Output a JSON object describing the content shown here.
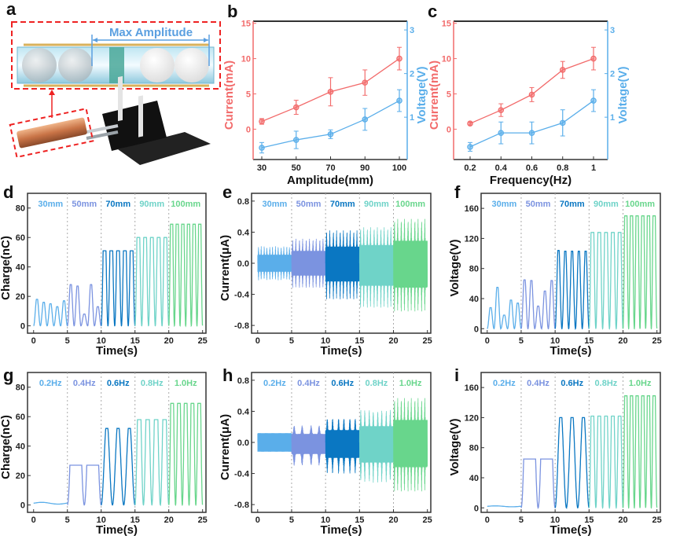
{
  "panel_letters": [
    "a",
    "b",
    "c",
    "d",
    "e",
    "f",
    "g",
    "h",
    "i"
  ],
  "illustration": {
    "label": "Max Amplitude",
    "accent_color": "#5a9fe0",
    "highlight_color": "#ee2222"
  },
  "colors": {
    "current": "#f26b6b",
    "voltage": "#5aaeea",
    "divider": "#aaaaaa",
    "frame": "#333333"
  },
  "chart_data": [
    {
      "panel": "b",
      "type": "line",
      "xlabel": "Amplitude(mm)",
      "ylabel_left": "Current(mA)",
      "ylabel_right": "Voltage(V)",
      "categories": [
        "30",
        "50",
        "70",
        "90",
        "100"
      ],
      "ylim_left": [
        -4.3,
        15.3
      ],
      "yticks_left": [
        "0",
        "5",
        "10",
        "15"
      ],
      "ylim_right": [
        0.03,
        3.2
      ],
      "yticks_right": [
        "1",
        "2",
        "3"
      ],
      "series": [
        {
          "axis": "left",
          "color": "#f26b6b",
          "values": [
            1.1,
            3.1,
            5.3,
            6.6,
            10.0
          ],
          "errors": [
            0.4,
            1.0,
            2.0,
            1.8,
            1.6
          ]
        },
        {
          "axis": "right",
          "color": "#5aaeea",
          "values": [
            0.3,
            0.48,
            0.61,
            0.95,
            1.38
          ],
          "errors": [
            0.12,
            0.2,
            0.1,
            0.25,
            0.25
          ]
        }
      ]
    },
    {
      "panel": "c",
      "type": "line",
      "xlabel": "Frequency(Hz)",
      "ylabel_left": "Current(mA)",
      "ylabel_right": "Voltage(V)",
      "categories": [
        "0.2",
        "0.4",
        "0.6",
        "0.8",
        "1"
      ],
      "ylim_left": [
        -4.3,
        15.3
      ],
      "yticks_left": [
        "0",
        "5",
        "10",
        "15"
      ],
      "ylim_right": [
        0.03,
        3.2
      ],
      "yticks_right": [
        "1",
        "2",
        "3"
      ],
      "series": [
        {
          "axis": "left",
          "color": "#f26b6b",
          "values": [
            0.8,
            2.7,
            4.9,
            8.4,
            10.0
          ],
          "errors": [
            0.2,
            0.9,
            1.0,
            1.2,
            1.6
          ]
        },
        {
          "axis": "right",
          "color": "#5aaeea",
          "values": [
            0.32,
            0.64,
            0.64,
            0.87,
            1.38
          ],
          "errors": [
            0.1,
            0.25,
            0.25,
            0.3,
            0.25
          ]
        }
      ]
    },
    {
      "panel": "d",
      "type": "line",
      "kind": "charge",
      "xlabel": "Time(s)",
      "ylabel": "Charge(nC)",
      "xlim": [
        0,
        25
      ],
      "xticks": [
        "0",
        "5",
        "10",
        "15",
        "20",
        "25"
      ],
      "ylim": [
        -5,
        90
      ],
      "yticks": [
        "0",
        "20",
        "40",
        "60",
        "80"
      ],
      "segments": [
        {
          "label": "30mm",
          "t": [
            0,
            5
          ],
          "color": "#5aaeea",
          "peaks": [
            18,
            16,
            15,
            13,
            17
          ]
        },
        {
          "label": "50mm",
          "t": [
            5,
            10
          ],
          "color": "#7b93e0",
          "peaks": [
            28,
            27,
            8,
            28,
            13
          ]
        },
        {
          "label": "70mm",
          "t": [
            10,
            15
          ],
          "color": "#0a77c2",
          "peaks": [
            51,
            51,
            51,
            51,
            51
          ]
        },
        {
          "label": "90mm",
          "t": [
            15,
            20
          ],
          "color": "#6fd3c8",
          "peaks": [
            60,
            60,
            60,
            60,
            60
          ]
        },
        {
          "label": "100mm",
          "t": [
            20,
            25
          ],
          "color": "#68d68c",
          "peaks": [
            69,
            69,
            69,
            69,
            69,
            69
          ]
        }
      ]
    },
    {
      "panel": "e",
      "type": "line",
      "kind": "current",
      "xlabel": "Time(s)",
      "ylabel": "Current(μA)",
      "xlim": [
        0,
        25
      ],
      "xticks": [
        "0",
        "5",
        "10",
        "15",
        "20",
        "25"
      ],
      "ylim": [
        -0.9,
        0.9
      ],
      "yticks": [
        "0.8",
        "0.4",
        "0.0",
        "-0.4",
        "-0.8"
      ],
      "ytick_values": [
        0.8,
        0.4,
        0,
        -0.4,
        -0.8
      ],
      "segments": [
        {
          "label": "30mm",
          "t": [
            0,
            5
          ],
          "color": "#5aaeea",
          "pos_peak": 0.22,
          "neg_peak": -0.22,
          "cycles": 6
        },
        {
          "label": "50mm",
          "t": [
            5,
            10
          ],
          "color": "#7b93e0",
          "pos_peak": 0.32,
          "neg_peak": -0.32,
          "cycles": 5
        },
        {
          "label": "70mm",
          "t": [
            10,
            15
          ],
          "color": "#0a77c2",
          "pos_peak": 0.43,
          "neg_peak": -0.47,
          "cycles": 5
        },
        {
          "label": "90mm",
          "t": [
            15,
            20
          ],
          "color": "#6fd3c8",
          "pos_peak": 0.47,
          "neg_peak": -0.58,
          "cycles": 5
        },
        {
          "label": "100mm",
          "t": [
            20,
            25
          ],
          "color": "#68d68c",
          "pos_peak": 0.58,
          "neg_peak": -0.63,
          "cycles": 5
        }
      ]
    },
    {
      "panel": "f",
      "type": "line",
      "kind": "charge",
      "xlabel": "Time(s)",
      "ylabel": "Voltage(V)",
      "xlim": [
        0,
        25
      ],
      "xticks": [
        "0",
        "5",
        "10",
        "15",
        "20",
        "25"
      ],
      "ylim": [
        -6,
        180
      ],
      "yticks": [
        "0",
        "40",
        "80",
        "120",
        "160"
      ],
      "segments": [
        {
          "label": "30mm",
          "t": [
            0,
            5
          ],
          "color": "#5aaeea",
          "peaks": [
            28,
            55,
            18,
            38,
            34
          ]
        },
        {
          "label": "50mm",
          "t": [
            5,
            10
          ],
          "color": "#7b93e0",
          "peaks": [
            65,
            64,
            30,
            50,
            64
          ]
        },
        {
          "label": "70mm",
          "t": [
            10,
            15
          ],
          "color": "#0a77c2",
          "peaks": [
            104,
            103,
            103,
            103,
            103
          ]
        },
        {
          "label": "90mm",
          "t": [
            15,
            20
          ],
          "color": "#6fd3c8",
          "peaks": [
            128,
            128,
            128,
            128,
            128
          ]
        },
        {
          "label": "100mm",
          "t": [
            20,
            25
          ],
          "color": "#68d68c",
          "peaks": [
            150,
            150,
            150,
            150,
            150,
            150
          ]
        }
      ]
    },
    {
      "panel": "g",
      "type": "line",
      "kind": "charge",
      "xlabel": "Time(s)",
      "ylabel": "Charge(nC)",
      "xlim": [
        0,
        25
      ],
      "xticks": [
        "0",
        "5",
        "10",
        "15",
        "20",
        "25"
      ],
      "ylim": [
        -5,
        90
      ],
      "yticks": [
        "0",
        "20",
        "40",
        "60",
        "80"
      ],
      "segments": [
        {
          "label": "0.2Hz",
          "t": [
            0,
            5
          ],
          "color": "#5aaeea",
          "level": 1.2
        },
        {
          "label": "0.4Hz",
          "t": [
            5,
            10
          ],
          "color": "#7b93e0",
          "peaks": [
            27,
            27
          ]
        },
        {
          "label": "0.6Hz",
          "t": [
            10,
            15
          ],
          "color": "#0a77c2",
          "peaks": [
            52,
            52,
            52
          ]
        },
        {
          "label": "0.8Hz",
          "t": [
            15,
            20
          ],
          "color": "#6fd3c8",
          "peaks": [
            58,
            58,
            58,
            58
          ]
        },
        {
          "label": "1.0Hz",
          "t": [
            20,
            25
          ],
          "color": "#68d68c",
          "peaks": [
            69,
            69,
            69,
            69,
            69
          ]
        }
      ]
    },
    {
      "panel": "h",
      "type": "line",
      "kind": "current",
      "xlabel": "Time(s)",
      "ylabel": "Current(μA)",
      "xlim": [
        0,
        25
      ],
      "xticks": [
        "0",
        "5",
        "10",
        "15",
        "20",
        "25"
      ],
      "ylim": [
        -0.9,
        0.9
      ],
      "yticks": [
        "0.8",
        "0.4",
        "0.0",
        "-0.4",
        "-0.8"
      ],
      "ytick_values": [
        0.8,
        0.4,
        0,
        -0.4,
        -0.8
      ],
      "segments": [
        {
          "label": "0.2Hz",
          "t": [
            0,
            5
          ],
          "color": "#5aaeea",
          "pos_peak": 0.12,
          "neg_peak": -0.12,
          "cycles": 0
        },
        {
          "label": "0.4Hz",
          "t": [
            5,
            10
          ],
          "color": "#7b93e0",
          "pos_peak": 0.22,
          "neg_peak": -0.3,
          "cycles": 2
        },
        {
          "label": "0.6Hz",
          "t": [
            10,
            15
          ],
          "color": "#0a77c2",
          "pos_peak": 0.32,
          "neg_peak": -0.4,
          "cycles": 3
        },
        {
          "label": "0.8Hz",
          "t": [
            15,
            20
          ],
          "color": "#6fd3c8",
          "pos_peak": 0.42,
          "neg_peak": -0.52,
          "cycles": 4
        },
        {
          "label": "1.0Hz",
          "t": [
            20,
            25
          ],
          "color": "#68d68c",
          "pos_peak": 0.58,
          "neg_peak": -0.64,
          "cycles": 5
        }
      ]
    },
    {
      "panel": "i",
      "type": "line",
      "kind": "charge",
      "xlabel": "Time(s)",
      "ylabel": "Voltage(V)",
      "xlim": [
        0,
        25
      ],
      "xticks": [
        "0",
        "5",
        "10",
        "15",
        "20",
        "25"
      ],
      "ylim": [
        -6,
        180
      ],
      "yticks": [
        "0",
        "40",
        "80",
        "120",
        "160"
      ],
      "segments": [
        {
          "label": "0.2Hz",
          "t": [
            0,
            5
          ],
          "color": "#5aaeea",
          "level": 2
        },
        {
          "label": "0.4Hz",
          "t": [
            5,
            10
          ],
          "color": "#7b93e0",
          "peaks": [
            65,
            65
          ]
        },
        {
          "label": "0.6Hz",
          "t": [
            10,
            15
          ],
          "color": "#0a77c2",
          "peaks": [
            120,
            120,
            120
          ]
        },
        {
          "label": "0.8Hz",
          "t": [
            15,
            20
          ],
          "color": "#6fd3c8",
          "peaks": [
            122,
            122,
            122,
            122,
            122
          ]
        },
        {
          "label": "1.0Hz",
          "t": [
            20,
            25
          ],
          "color": "#68d68c",
          "peaks": [
            149,
            149,
            149,
            149,
            149,
            149
          ]
        }
      ]
    }
  ]
}
